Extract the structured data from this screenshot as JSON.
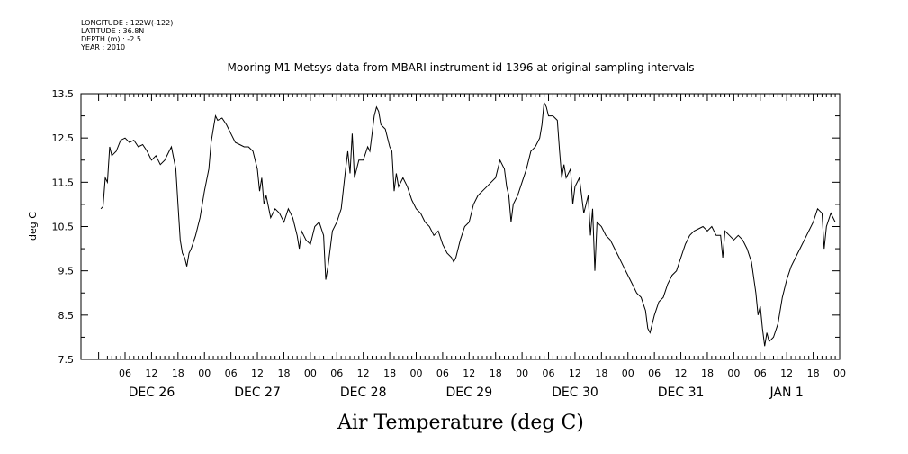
{
  "header": {
    "longitude": "LONGITUDE : 122W(-122)",
    "latitude": "LATITUDE : 36.8N",
    "depth": "DEPTH (m) : -2.5",
    "year": "YEAR : 2010"
  },
  "chart_data": {
    "type": "line",
    "title": "Mooring M1 Metsys data from MBARI instrument id 1396 at original sampling intervals",
    "xlabel": "Air Temperature (deg C)",
    "ylabel": "deg C",
    "ylim": [
      7.5,
      13.5
    ],
    "yticks": [
      "7.5",
      "8.5",
      "9.5",
      "10.5",
      "11.5",
      "12.5",
      "13.5"
    ],
    "xlim_hours": [
      0,
      168
    ],
    "hour_tick_labels": [
      "06",
      "12",
      "18",
      "00",
      "06",
      "12",
      "18",
      "00",
      "06",
      "12",
      "18",
      "00",
      "06",
      "12",
      "18",
      "00",
      "06",
      "12",
      "18",
      "00",
      "06",
      "12",
      "18",
      "00",
      "06",
      "12",
      "18",
      "00"
    ],
    "day_labels": [
      "DEC 26",
      "DEC 27",
      "DEC 28",
      "DEC 29",
      "DEC 30",
      "DEC 31",
      "JAN  1"
    ],
    "grid": false,
    "series": [
      {
        "points": [
          [
            0.5,
            10.9
          ],
          [
            1,
            10.95
          ],
          [
            1.5,
            11.6
          ],
          [
            2,
            11.5
          ],
          [
            2.5,
            12.3
          ],
          [
            3,
            12.1
          ],
          [
            4,
            12.2
          ],
          [
            5,
            12.45
          ],
          [
            6,
            12.5
          ],
          [
            7,
            12.4
          ],
          [
            8,
            12.45
          ],
          [
            9,
            12.3
          ],
          [
            10,
            12.35
          ],
          [
            11,
            12.2
          ],
          [
            12,
            12.0
          ],
          [
            13,
            12.1
          ],
          [
            14,
            11.9
          ],
          [
            15,
            12.0
          ],
          [
            16,
            12.2
          ],
          [
            16.5,
            12.3
          ],
          [
            17.5,
            11.8
          ],
          [
            18,
            11.0
          ],
          [
            18.5,
            10.2
          ],
          [
            19,
            9.9
          ],
          [
            19.5,
            9.8
          ],
          [
            20,
            9.6
          ],
          [
            20.5,
            9.9
          ],
          [
            21,
            10.0
          ],
          [
            22,
            10.3
          ],
          [
            23,
            10.7
          ],
          [
            24,
            11.3
          ],
          [
            25,
            11.8
          ],
          [
            25.5,
            12.4
          ],
          [
            26,
            12.7
          ],
          [
            26.5,
            13.0
          ],
          [
            27,
            12.9
          ],
          [
            28,
            12.95
          ],
          [
            29,
            12.8
          ],
          [
            30,
            12.6
          ],
          [
            31,
            12.4
          ],
          [
            32,
            12.35
          ],
          [
            33,
            12.3
          ],
          [
            34,
            12.3
          ],
          [
            35,
            12.2
          ],
          [
            36,
            11.8
          ],
          [
            36.5,
            11.3
          ],
          [
            37,
            11.6
          ],
          [
            37.5,
            11.0
          ],
          [
            38,
            11.2
          ],
          [
            39,
            10.7
          ],
          [
            40,
            10.9
          ],
          [
            41,
            10.8
          ],
          [
            42,
            10.6
          ],
          [
            43,
            10.9
          ],
          [
            44,
            10.7
          ],
          [
            45,
            10.3
          ],
          [
            45.5,
            10.0
          ],
          [
            46,
            10.4
          ],
          [
            47,
            10.2
          ],
          [
            48,
            10.1
          ],
          [
            49,
            10.5
          ],
          [
            50,
            10.6
          ],
          [
            51,
            10.3
          ],
          [
            51.5,
            9.3
          ],
          [
            52,
            9.6
          ],
          [
            53,
            10.4
          ],
          [
            54,
            10.6
          ],
          [
            55,
            10.9
          ],
          [
            56,
            11.8
          ],
          [
            56.5,
            12.2
          ],
          [
            57,
            11.7
          ],
          [
            57.5,
            12.6
          ],
          [
            58,
            11.6
          ],
          [
            59,
            12.0
          ],
          [
            60,
            12.0
          ],
          [
            61,
            12.3
          ],
          [
            61.5,
            12.2
          ],
          [
            62,
            12.6
          ],
          [
            62.5,
            13.0
          ],
          [
            63,
            13.2
          ],
          [
            63.5,
            13.1
          ],
          [
            64,
            12.8
          ],
          [
            65,
            12.7
          ],
          [
            66,
            12.3
          ],
          [
            66.5,
            12.2
          ],
          [
            67,
            11.3
          ],
          [
            67.5,
            11.7
          ],
          [
            68,
            11.4
          ],
          [
            69,
            11.6
          ],
          [
            70,
            11.4
          ],
          [
            71,
            11.1
          ],
          [
            72,
            10.9
          ],
          [
            73,
            10.8
          ],
          [
            74,
            10.6
          ],
          [
            75,
            10.5
          ],
          [
            76,
            10.3
          ],
          [
            77,
            10.4
          ],
          [
            78,
            10.1
          ],
          [
            79,
            9.9
          ],
          [
            80,
            9.8
          ],
          [
            80.5,
            9.7
          ],
          [
            81,
            9.8
          ],
          [
            82,
            10.2
          ],
          [
            83,
            10.5
          ],
          [
            84,
            10.6
          ],
          [
            85,
            11.0
          ],
          [
            86,
            11.2
          ],
          [
            87,
            11.3
          ],
          [
            88,
            11.4
          ],
          [
            89,
            11.5
          ],
          [
            90,
            11.6
          ],
          [
            91,
            12.0
          ],
          [
            92,
            11.8
          ],
          [
            92.5,
            11.4
          ],
          [
            93,
            11.2
          ],
          [
            93.5,
            10.6
          ],
          [
            94,
            11.0
          ],
          [
            95,
            11.2
          ],
          [
            96,
            11.5
          ],
          [
            97,
            11.8
          ],
          [
            98,
            12.2
          ],
          [
            99,
            12.3
          ],
          [
            100,
            12.5
          ],
          [
            100.5,
            12.8
          ],
          [
            101,
            13.3
          ],
          [
            101.5,
            13.2
          ],
          [
            102,
            13.0
          ],
          [
            103,
            13.0
          ],
          [
            104,
            12.9
          ],
          [
            104.5,
            12.2
          ],
          [
            105,
            11.6
          ],
          [
            105.5,
            11.9
          ],
          [
            106,
            11.6
          ],
          [
            107,
            11.8
          ],
          [
            107.5,
            11.0
          ],
          [
            108,
            11.4
          ],
          [
            109,
            11.6
          ],
          [
            110,
            10.8
          ],
          [
            111,
            11.2
          ],
          [
            111.5,
            10.3
          ],
          [
            112,
            10.9
          ],
          [
            112.5,
            9.5
          ],
          [
            113,
            10.6
          ],
          [
            114,
            10.5
          ],
          [
            115,
            10.3
          ],
          [
            116,
            10.2
          ],
          [
            117,
            10.0
          ],
          [
            118,
            9.8
          ],
          [
            119,
            9.6
          ],
          [
            120,
            9.4
          ],
          [
            121,
            9.2
          ],
          [
            122,
            9.0
          ],
          [
            123,
            8.9
          ],
          [
            124,
            8.6
          ],
          [
            124.5,
            8.2
          ],
          [
            125,
            8.1
          ],
          [
            125.5,
            8.3
          ],
          [
            126,
            8.5
          ],
          [
            127,
            8.8
          ],
          [
            128,
            8.9
          ],
          [
            129,
            9.2
          ],
          [
            130,
            9.4
          ],
          [
            131,
            9.5
          ],
          [
            132,
            9.8
          ],
          [
            133,
            10.1
          ],
          [
            134,
            10.3
          ],
          [
            135,
            10.4
          ],
          [
            136,
            10.45
          ],
          [
            137,
            10.5
          ],
          [
            138,
            10.4
          ],
          [
            139,
            10.5
          ],
          [
            140,
            10.3
          ],
          [
            141,
            10.3
          ],
          [
            141.5,
            9.8
          ],
          [
            142,
            10.4
          ],
          [
            143,
            10.3
          ],
          [
            144,
            10.2
          ],
          [
            145,
            10.3
          ],
          [
            146,
            10.2
          ],
          [
            147,
            10.0
          ],
          [
            148,
            9.7
          ],
          [
            149,
            9.0
          ],
          [
            149.5,
            8.5
          ],
          [
            150,
            8.7
          ],
          [
            150.5,
            8.2
          ],
          [
            151,
            7.8
          ],
          [
            151.5,
            8.1
          ],
          [
            152,
            7.9
          ],
          [
            153,
            8.0
          ],
          [
            154,
            8.3
          ],
          [
            155,
            8.9
          ],
          [
            156,
            9.3
          ],
          [
            157,
            9.6
          ],
          [
            158,
            9.8
          ],
          [
            159,
            10.0
          ],
          [
            160,
            10.2
          ],
          [
            161,
            10.4
          ],
          [
            162,
            10.6
          ],
          [
            163,
            10.9
          ],
          [
            164,
            10.8
          ],
          [
            164.5,
            10.0
          ],
          [
            165,
            10.5
          ],
          [
            166,
            10.8
          ],
          [
            167,
            10.6
          ]
        ]
      }
    ]
  }
}
